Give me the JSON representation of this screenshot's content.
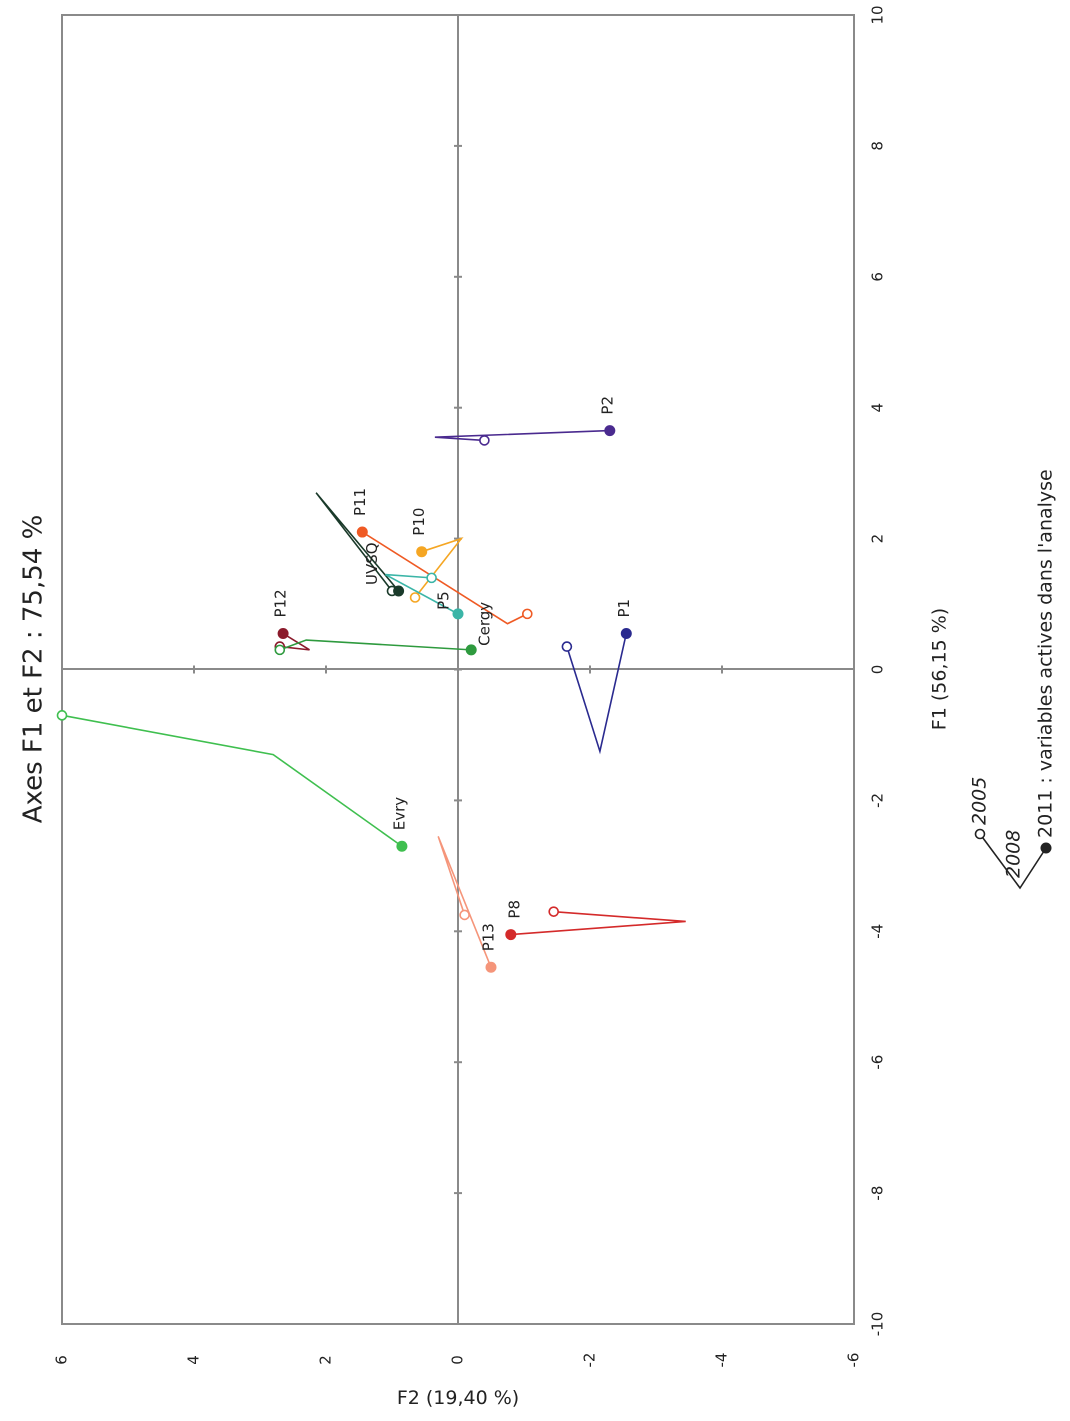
{
  "chart_data": {
    "type": "scatter",
    "title": "Axes F1 et F2 : 75,54 %",
    "xlabel": "F1 (56,15 %)",
    "ylabel": "F2 (19,40 %)",
    "xlim": [
      -10,
      10
    ],
    "ylim": [
      -6,
      6
    ],
    "x_ticks": [
      "-10",
      "-8",
      "-6",
      "-4",
      "-2",
      "0",
      "2",
      "4",
      "6",
      "8",
      "10"
    ],
    "y_ticks": [
      "-6",
      "-4",
      "-2",
      "0",
      "2",
      "4",
      "6"
    ],
    "grid": false,
    "zero_lines": true,
    "years": [
      "2005",
      "2008",
      "2011"
    ],
    "series": [
      {
        "name": "P2",
        "color": "#4a2a8f",
        "points": [
          [
            3.5,
            -0.4
          ],
          [
            3.55,
            0.35
          ],
          [
            3.65,
            -2.3
          ]
        ]
      },
      {
        "name": "P11",
        "color": "#ef5a24",
        "points": [
          [
            0.85,
            -1.05
          ],
          [
            0.7,
            -0.75
          ],
          [
            2.1,
            1.45
          ]
        ]
      },
      {
        "name": "P10",
        "color": "#f5a623",
        "points": [
          [
            1.1,
            0.65
          ],
          [
            2.0,
            -0.05
          ],
          [
            1.8,
            0.55
          ]
        ]
      },
      {
        "name": "UVSQ",
        "color": "#1a3a2a",
        "points": [
          [
            1.2,
            1.0
          ],
          [
            2.7,
            2.15
          ],
          [
            1.2,
            0.9
          ]
        ]
      },
      {
        "name": "P5",
        "color": "#3bb5a7",
        "points": [
          [
            1.4,
            0.4
          ],
          [
            1.45,
            1.1
          ],
          [
            0.85,
            0.0
          ]
        ]
      },
      {
        "name": "P12",
        "color": "#8b1a2b",
        "points": [
          [
            0.35,
            2.7
          ],
          [
            0.3,
            2.25
          ],
          [
            0.55,
            2.65
          ]
        ]
      },
      {
        "name": "Cergy",
        "color": "#2e9a3e",
        "points": [
          [
            0.3,
            2.7
          ],
          [
            0.45,
            2.3
          ],
          [
            0.3,
            -0.2
          ]
        ]
      },
      {
        "name": "P1",
        "color": "#2a2a8f",
        "points": [
          [
            0.35,
            -1.65
          ],
          [
            -1.25,
            -2.15
          ],
          [
            0.55,
            -2.55
          ]
        ]
      },
      {
        "name": "Evry",
        "color": "#3fbf4f",
        "points": [
          [
            -0.7,
            6.0
          ],
          [
            -1.3,
            2.8
          ],
          [
            -2.7,
            0.85
          ]
        ]
      },
      {
        "name": "P13",
        "color": "#f5957a",
        "points": [
          [
            -3.75,
            -0.1
          ],
          [
            -2.55,
            0.3
          ],
          [
            -4.55,
            -0.5
          ]
        ]
      },
      {
        "name": "P8",
        "color": "#d42a2a",
        "points": [
          [
            -3.7,
            -1.45
          ],
          [
            -3.85,
            -3.45
          ],
          [
            -4.05,
            -0.8
          ]
        ]
      }
    ],
    "labels": [
      {
        "text": "P2",
        "series": "P2"
      },
      {
        "text": "P11",
        "series": "P11"
      },
      {
        "text": "P10",
        "series": "P10"
      },
      {
        "text": "UVSQ",
        "series": "UVSQ"
      },
      {
        "text": "P5",
        "series": "P5"
      },
      {
        "text": "P12",
        "series": "P12"
      },
      {
        "text": "Cergy",
        "series": "Cergy"
      },
      {
        "text": "P1",
        "series": "P1"
      },
      {
        "text": "Evry",
        "series": "Evry"
      },
      {
        "text": "P13",
        "series": "P13"
      },
      {
        "text": "P8",
        "series": "P8"
      }
    ],
    "legend": {
      "items": [
        "2005",
        "2008",
        "2011 : variables actives dans l'analyse"
      ]
    }
  }
}
